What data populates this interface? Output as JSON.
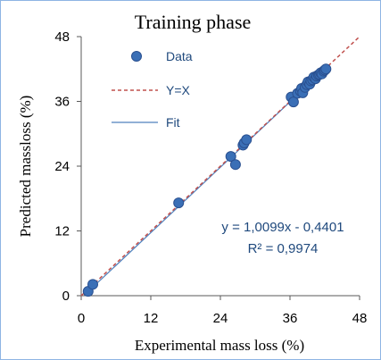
{
  "chart_data": {
    "type": "scatter",
    "title": "Training phase",
    "xlabel": "Experimental mass loss  (%)",
    "ylabel": "Predicted massloss (%)",
    "xlim": [
      0,
      48
    ],
    "ylim": [
      0,
      48
    ],
    "xticks": [
      "0",
      "12",
      "24",
      "36",
      "48"
    ],
    "yticks": [
      "0",
      "12",
      "24",
      "36",
      "48"
    ],
    "grid": false,
    "legend_position": "top-left",
    "legend": [
      {
        "label": "Data",
        "kind": "marker"
      },
      {
        "label": "Y=X",
        "kind": "dashed-line"
      },
      {
        "label": "Fit",
        "kind": "solid-line"
      }
    ],
    "equation": "y = 1,0099x - 0,4401",
    "r_squared": "R² = 0,9974",
    "fit": {
      "slope": 1.0099,
      "intercept": -0.4401
    },
    "colors": {
      "marker": "#3a6fb6",
      "marker_edge": "#2a5090",
      "identity_line": "#c0504d",
      "fit_line": "#4f81bd",
      "annotation": "#1f497d",
      "frame": "#8eb4e3"
    },
    "series": [
      {
        "name": "Data",
        "points": [
          [
            1.2,
            0.8
          ],
          [
            2.0,
            2.1
          ],
          [
            16.8,
            17.2
          ],
          [
            25.8,
            25.8
          ],
          [
            26.6,
            24.3
          ],
          [
            27.9,
            27.9
          ],
          [
            28.1,
            28.3
          ],
          [
            28.5,
            28.9
          ],
          [
            36.2,
            36.8
          ],
          [
            36.6,
            35.9
          ],
          [
            37.3,
            37.5
          ],
          [
            37.8,
            37.9
          ],
          [
            38.0,
            38.4
          ],
          [
            38.2,
            37.6
          ],
          [
            38.6,
            38.6
          ],
          [
            38.9,
            39.1
          ],
          [
            39.1,
            39.6
          ],
          [
            39.4,
            39.2
          ],
          [
            39.6,
            39.8
          ],
          [
            39.9,
            40.0
          ],
          [
            40.1,
            40.5
          ],
          [
            40.4,
            40.2
          ],
          [
            40.6,
            40.7
          ],
          [
            40.9,
            40.9
          ],
          [
            41.1,
            41.0
          ],
          [
            41.3,
            41.3
          ],
          [
            41.5,
            41.1
          ],
          [
            41.8,
            41.6
          ],
          [
            42.0,
            41.8
          ],
          [
            42.2,
            42.0
          ]
        ]
      }
    ]
  }
}
